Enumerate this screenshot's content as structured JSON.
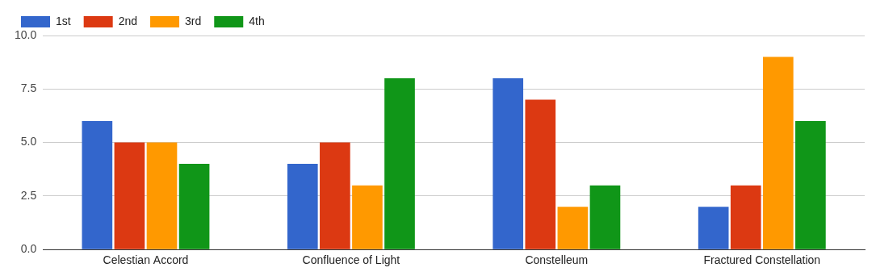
{
  "chart_data": {
    "type": "bar",
    "categories": [
      "Celestian Accord",
      "Confluence of Light",
      "Constelleum",
      "Fractured Constellation"
    ],
    "series": [
      {
        "name": "1st",
        "color": "#3366cc",
        "values": [
          6,
          4,
          8,
          2
        ]
      },
      {
        "name": "2nd",
        "color": "#dc3912",
        "values": [
          5,
          5,
          7,
          3
        ]
      },
      {
        "name": "3rd",
        "color": "#ff9900",
        "values": [
          5,
          3,
          2,
          9
        ]
      },
      {
        "name": "4th",
        "color": "#109618",
        "values": [
          4,
          8,
          3,
          6
        ]
      }
    ],
    "ylim": [
      0,
      10
    ],
    "yticks": [
      {
        "value": 0,
        "label": "0.0"
      },
      2.5,
      {
        "value": 5,
        "label": "5.0"
      },
      7.5,
      {
        "value": 10,
        "label": "10.0"
      }
    ],
    "grid": true,
    "legend": "top-left"
  }
}
